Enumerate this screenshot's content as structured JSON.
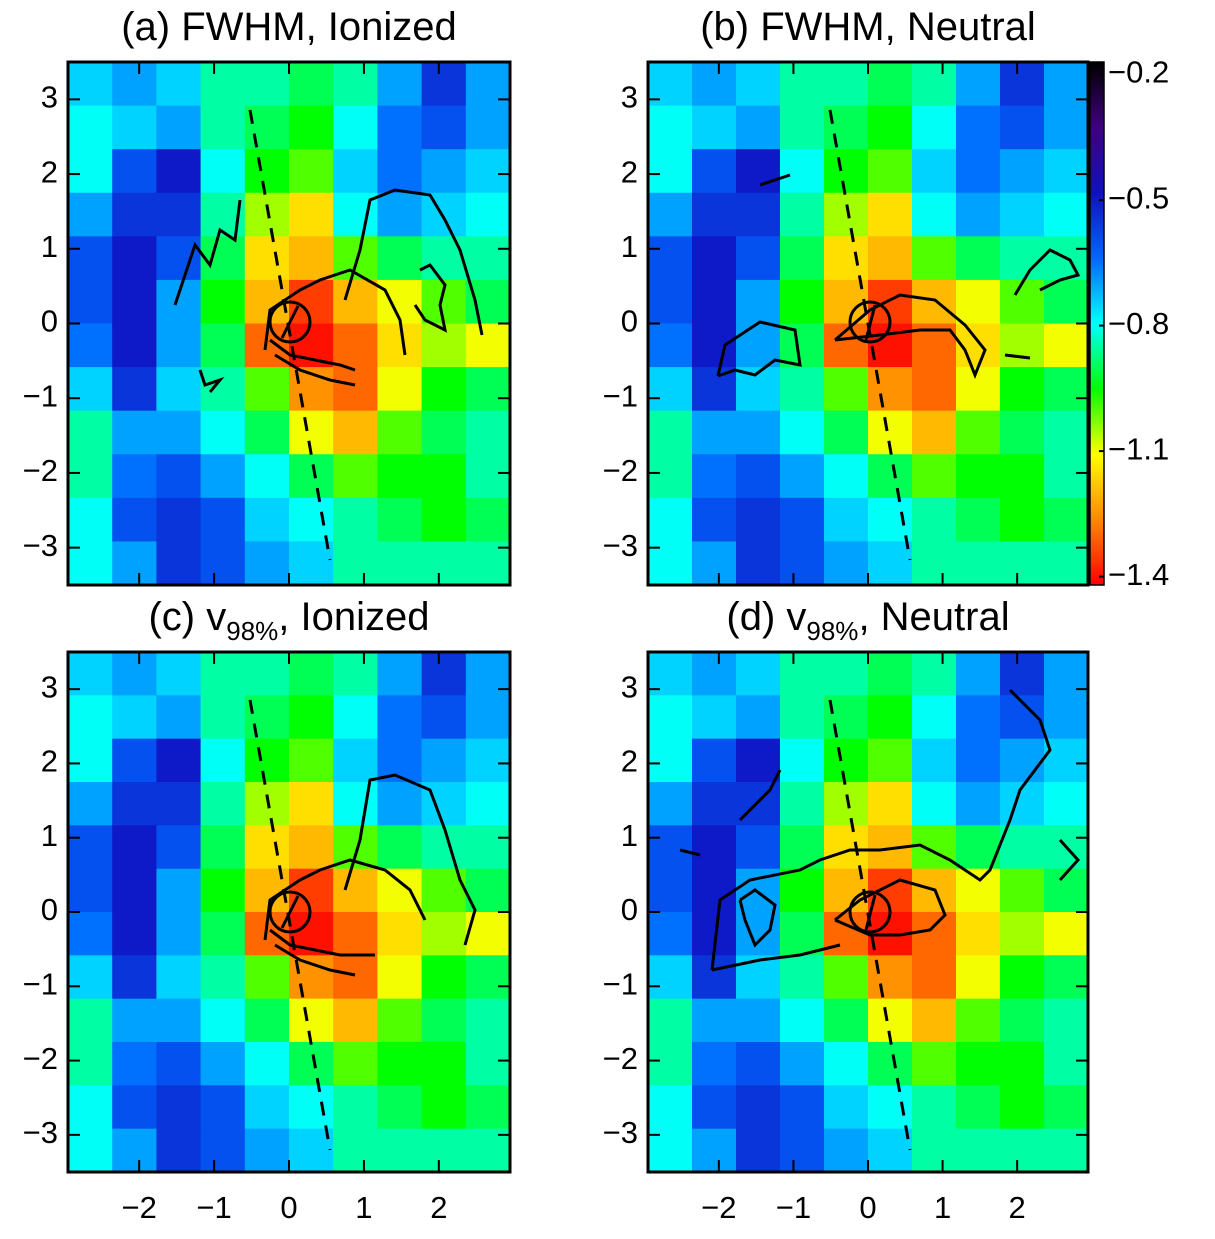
{
  "chart_data": [
    {
      "type": "heatmap",
      "title_prefix": "(a) FWHM, Ionized",
      "xlim": [
        -2.95,
        2.95
      ],
      "ylim": [
        -3.5,
        3.5
      ],
      "xticks": [
        -2,
        -1,
        0,
        1,
        2
      ],
      "yticks": [
        {
          "value": -3,
          "label": "−3"
        },
        {
          "value": -2,
          "label": "−2"
        },
        {
          "value": -1,
          "label": "−1"
        },
        0,
        1,
        2,
        3
      ],
      "clim": [
        -1.42,
        -0.17
      ],
      "colormap": [
        "#ff0000",
        "#ff8800",
        "#ffff00",
        "#00ff00",
        "#00ffff",
        "#0066ff",
        "#1010c0",
        "#400080",
        "#000000"
      ],
      "z": [
        [
          -0.75,
          -0.7,
          -0.75,
          -0.85,
          -0.85,
          -0.9,
          -0.85,
          -0.7,
          -0.55,
          -0.7
        ],
        [
          -0.8,
          -0.75,
          -0.7,
          -0.85,
          -0.9,
          -0.95,
          -0.8,
          -0.65,
          -0.6,
          -0.7
        ],
        [
          -0.8,
          -0.6,
          -0.5,
          -0.8,
          -0.95,
          -1.0,
          -0.75,
          -0.65,
          -0.7,
          -0.75
        ],
        [
          -0.7,
          -0.55,
          -0.55,
          -0.85,
          -1.05,
          -1.15,
          -0.8,
          -0.7,
          -0.75,
          -0.8
        ],
        [
          -0.6,
          -0.5,
          -0.6,
          -0.9,
          -1.15,
          -1.2,
          -1.0,
          -0.9,
          -0.85,
          -0.85
        ],
        [
          -0.6,
          -0.5,
          -0.7,
          -0.95,
          -1.2,
          -1.35,
          -1.2,
          -1.1,
          -1.0,
          -0.9
        ],
        [
          -0.65,
          -0.5,
          -0.7,
          -0.9,
          -1.3,
          -1.4,
          -1.3,
          -1.15,
          -1.05,
          -1.1
        ],
        [
          -0.75,
          -0.55,
          -0.75,
          -0.85,
          -1.0,
          -1.25,
          -1.3,
          -1.1,
          -0.95,
          -0.9
        ],
        [
          -0.85,
          -0.7,
          -0.7,
          -0.8,
          -0.9,
          -1.1,
          -1.2,
          -1.0,
          -0.9,
          -0.85
        ],
        [
          -0.85,
          -0.65,
          -0.6,
          -0.7,
          -0.8,
          -0.9,
          -1.0,
          -0.95,
          -0.95,
          -0.85
        ],
        [
          -0.8,
          -0.6,
          -0.55,
          -0.6,
          -0.75,
          -0.8,
          -0.85,
          -0.9,
          -0.95,
          -0.9
        ],
        [
          -0.8,
          -0.7,
          -0.55,
          -0.6,
          -0.7,
          -0.75,
          -0.85,
          -0.85,
          -0.85,
          -0.85
        ]
      ]
    },
    {
      "type": "heatmap",
      "title_prefix": "(b) FWHM, Neutral",
      "xlim": [
        -2.95,
        2.95
      ],
      "ylim": [
        -3.5,
        3.5
      ],
      "xticks": [
        -2,
        -1,
        0,
        1,
        2
      ],
      "yticks": [
        {
          "value": -3,
          "label": "−3"
        },
        {
          "value": -2,
          "label": "−2"
        },
        {
          "value": -1,
          "label": "−1"
        },
        0,
        1,
        2,
        3
      ],
      "clim": [
        -1.42,
        -0.17
      ],
      "colormap": [
        "#ff0000",
        "#ff8800",
        "#ffff00",
        "#00ff00",
        "#00ffff",
        "#0066ff",
        "#1010c0",
        "#400080",
        "#000000"
      ],
      "colorbar_ticks": [
        {
          "value": -0.2,
          "label": "−0.2"
        },
        {
          "value": -0.5,
          "label": "−0.5"
        },
        {
          "value": -0.8,
          "label": "−0.8"
        },
        {
          "value": -1.1,
          "label": "−1.1"
        },
        {
          "value": -1.4,
          "label": "−1.4"
        }
      ],
      "z": [
        [
          -0.75,
          -0.7,
          -0.75,
          -0.85,
          -0.85,
          -0.9,
          -0.85,
          -0.7,
          -0.55,
          -0.7
        ],
        [
          -0.8,
          -0.75,
          -0.7,
          -0.85,
          -0.9,
          -0.95,
          -0.8,
          -0.65,
          -0.6,
          -0.7
        ],
        [
          -0.8,
          -0.6,
          -0.5,
          -0.8,
          -0.95,
          -1.0,
          -0.75,
          -0.65,
          -0.7,
          -0.75
        ],
        [
          -0.7,
          -0.55,
          -0.55,
          -0.85,
          -1.05,
          -1.15,
          -0.8,
          -0.7,
          -0.75,
          -0.8
        ],
        [
          -0.6,
          -0.5,
          -0.6,
          -0.9,
          -1.15,
          -1.2,
          -1.0,
          -0.9,
          -0.85,
          -0.85
        ],
        [
          -0.6,
          -0.5,
          -0.7,
          -0.95,
          -1.2,
          -1.35,
          -1.2,
          -1.1,
          -1.0,
          -0.9
        ],
        [
          -0.65,
          -0.5,
          -0.7,
          -0.9,
          -1.3,
          -1.4,
          -1.3,
          -1.15,
          -1.05,
          -1.1
        ],
        [
          -0.75,
          -0.55,
          -0.75,
          -0.85,
          -1.0,
          -1.25,
          -1.3,
          -1.1,
          -0.95,
          -0.9
        ],
        [
          -0.85,
          -0.7,
          -0.7,
          -0.8,
          -0.9,
          -1.1,
          -1.2,
          -1.0,
          -0.9,
          -0.85
        ],
        [
          -0.85,
          -0.65,
          -0.6,
          -0.7,
          -0.8,
          -0.9,
          -1.0,
          -0.95,
          -0.95,
          -0.85
        ],
        [
          -0.8,
          -0.6,
          -0.55,
          -0.6,
          -0.75,
          -0.8,
          -0.85,
          -0.9,
          -0.95,
          -0.9
        ],
        [
          -0.8,
          -0.7,
          -0.55,
          -0.6,
          -0.7,
          -0.75,
          -0.85,
          -0.85,
          -0.85,
          -0.85
        ]
      ]
    },
    {
      "type": "heatmap",
      "title_prefix": "(c) v",
      "title_subscript": "98%",
      "title_suffix": ", Ionized",
      "xlim": [
        -2.95,
        2.95
      ],
      "ylim": [
        -3.5,
        3.5
      ],
      "xticks": [
        {
          "value": -2,
          "label": "−2"
        },
        {
          "value": -1,
          "label": "−1"
        },
        0,
        1,
        2
      ],
      "yticks": [
        {
          "value": -3,
          "label": "−3"
        },
        {
          "value": -2,
          "label": "−2"
        },
        {
          "value": -1,
          "label": "−1"
        },
        0,
        1,
        2,
        3
      ],
      "clim": [
        -1.42,
        -0.17
      ],
      "colormap": [
        "#ff0000",
        "#ff8800",
        "#ffff00",
        "#00ff00",
        "#00ffff",
        "#0066ff",
        "#1010c0",
        "#400080",
        "#000000"
      ],
      "z": [
        [
          -0.75,
          -0.7,
          -0.75,
          -0.85,
          -0.85,
          -0.9,
          -0.85,
          -0.7,
          -0.55,
          -0.7
        ],
        [
          -0.8,
          -0.75,
          -0.7,
          -0.85,
          -0.9,
          -0.95,
          -0.8,
          -0.65,
          -0.6,
          -0.7
        ],
        [
          -0.8,
          -0.6,
          -0.5,
          -0.8,
          -0.95,
          -1.0,
          -0.75,
          -0.65,
          -0.7,
          -0.75
        ],
        [
          -0.7,
          -0.55,
          -0.55,
          -0.85,
          -1.05,
          -1.15,
          -0.8,
          -0.7,
          -0.75,
          -0.8
        ],
        [
          -0.6,
          -0.5,
          -0.6,
          -0.9,
          -1.15,
          -1.2,
          -1.0,
          -0.9,
          -0.85,
          -0.85
        ],
        [
          -0.6,
          -0.5,
          -0.7,
          -0.95,
          -1.2,
          -1.35,
          -1.2,
          -1.1,
          -1.0,
          -0.9
        ],
        [
          -0.65,
          -0.5,
          -0.7,
          -0.9,
          -1.3,
          -1.4,
          -1.3,
          -1.15,
          -1.05,
          -1.1
        ],
        [
          -0.75,
          -0.55,
          -0.75,
          -0.85,
          -1.0,
          -1.25,
          -1.3,
          -1.1,
          -0.95,
          -0.9
        ],
        [
          -0.85,
          -0.7,
          -0.7,
          -0.8,
          -0.9,
          -1.1,
          -1.2,
          -1.0,
          -0.9,
          -0.85
        ],
        [
          -0.85,
          -0.65,
          -0.6,
          -0.7,
          -0.8,
          -0.9,
          -1.0,
          -0.95,
          -0.95,
          -0.85
        ],
        [
          -0.8,
          -0.6,
          -0.55,
          -0.6,
          -0.75,
          -0.8,
          -0.85,
          -0.9,
          -0.95,
          -0.9
        ],
        [
          -0.8,
          -0.7,
          -0.55,
          -0.6,
          -0.7,
          -0.75,
          -0.85,
          -0.85,
          -0.85,
          -0.85
        ]
      ]
    },
    {
      "type": "heatmap",
      "title_prefix": "(d) v",
      "title_subscript": "98%",
      "title_suffix": ", Neutral",
      "xlim": [
        -2.95,
        2.95
      ],
      "ylim": [
        -3.5,
        3.5
      ],
      "xticks": [
        {
          "value": -2,
          "label": "−2"
        },
        {
          "value": -1,
          "label": "−1"
        },
        0,
        1,
        2
      ],
      "yticks": [
        {
          "value": -3,
          "label": "−3"
        },
        {
          "value": -2,
          "label": "−2"
        },
        {
          "value": -1,
          "label": "−1"
        },
        0,
        1,
        2,
        3
      ],
      "clim": [
        -1.42,
        -0.17
      ],
      "colormap": [
        "#ff0000",
        "#ff8800",
        "#ffff00",
        "#00ff00",
        "#00ffff",
        "#0066ff",
        "#1010c0",
        "#400080",
        "#000000"
      ],
      "z": [
        [
          -0.75,
          -0.7,
          -0.75,
          -0.85,
          -0.85,
          -0.9,
          -0.85,
          -0.7,
          -0.55,
          -0.7
        ],
        [
          -0.8,
          -0.75,
          -0.7,
          -0.85,
          -0.9,
          -0.95,
          -0.8,
          -0.65,
          -0.6,
          -0.7
        ],
        [
          -0.8,
          -0.6,
          -0.5,
          -0.8,
          -0.95,
          -1.0,
          -0.75,
          -0.65,
          -0.7,
          -0.75
        ],
        [
          -0.7,
          -0.55,
          -0.55,
          -0.85,
          -1.05,
          -1.15,
          -0.8,
          -0.7,
          -0.75,
          -0.8
        ],
        [
          -0.6,
          -0.5,
          -0.6,
          -0.9,
          -1.15,
          -1.2,
          -1.0,
          -0.9,
          -0.85,
          -0.85
        ],
        [
          -0.6,
          -0.5,
          -0.7,
          -0.95,
          -1.2,
          -1.35,
          -1.2,
          -1.1,
          -1.0,
          -0.9
        ],
        [
          -0.65,
          -0.5,
          -0.7,
          -0.9,
          -1.3,
          -1.4,
          -1.3,
          -1.15,
          -1.05,
          -1.1
        ],
        [
          -0.75,
          -0.55,
          -0.75,
          -0.85,
          -1.0,
          -1.25,
          -1.3,
          -1.1,
          -0.95,
          -0.9
        ],
        [
          -0.85,
          -0.7,
          -0.7,
          -0.8,
          -0.9,
          -1.1,
          -1.2,
          -1.0,
          -0.9,
          -0.85
        ],
        [
          -0.85,
          -0.65,
          -0.6,
          -0.7,
          -0.8,
          -0.9,
          -1.0,
          -0.95,
          -0.95,
          -0.85
        ],
        [
          -0.8,
          -0.6,
          -0.55,
          -0.6,
          -0.75,
          -0.8,
          -0.85,
          -0.9,
          -0.95,
          -0.9
        ],
        [
          -0.8,
          -0.7,
          -0.55,
          -0.6,
          -0.7,
          -0.75,
          -0.85,
          -0.85,
          -0.85,
          -0.85
        ]
      ]
    }
  ]
}
